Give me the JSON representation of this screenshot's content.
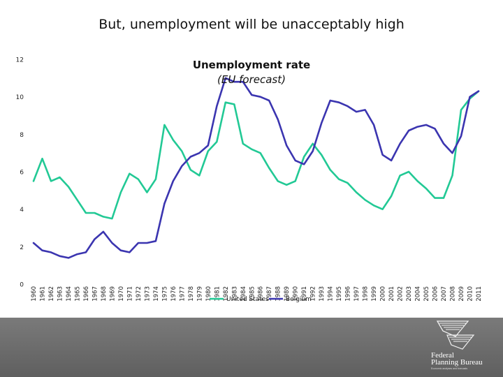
{
  "slide": {
    "title": "But, unemployment will be unacceptably high"
  },
  "logo": {
    "line1": "Federal",
    "line2": "Planning Bureau",
    "tagline": "Economic analyses and forecasts"
  },
  "chart_data": {
    "type": "line",
    "title": "Unemployment rate",
    "subtitle": "(EU forecast)",
    "xlabel": "",
    "ylabel": "",
    "ylim": [
      0,
      12
    ],
    "yticks": [
      0,
      2,
      4,
      6,
      8,
      10,
      12
    ],
    "grid": false,
    "legend": "bottom-center",
    "categories": [
      "1960",
      "1961",
      "1962",
      "1963",
      "1964",
      "1965",
      "1966",
      "1967",
      "1968",
      "1969",
      "1970",
      "1971",
      "1972",
      "1973",
      "1974",
      "1975",
      "1976",
      "1977",
      "1978",
      "1979",
      "1980",
      "1981",
      "1982",
      "1983",
      "1984",
      "1985",
      "1986",
      "1987",
      "1988",
      "1989",
      "1990",
      "1991",
      "1992",
      "1993",
      "1994",
      "1995",
      "1996",
      "1997",
      "1998",
      "1999",
      "2000",
      "2001",
      "2002",
      "2003",
      "2004",
      "2005",
      "2006",
      "2007",
      "2008",
      "2009",
      "2010",
      "2011"
    ],
    "series": [
      {
        "name": "United States",
        "color": "#22c995",
        "values": [
          5.5,
          6.7,
          5.5,
          5.7,
          5.2,
          4.5,
          3.8,
          3.8,
          3.6,
          3.5,
          4.9,
          5.9,
          5.6,
          4.9,
          5.6,
          8.5,
          7.7,
          7.1,
          6.1,
          5.8,
          7.1,
          7.6,
          9.7,
          9.6,
          7.5,
          7.2,
          7.0,
          6.2,
          5.5,
          5.3,
          5.5,
          6.8,
          7.5,
          6.9,
          6.1,
          5.6,
          5.4,
          4.9,
          4.5,
          4.2,
          4.0,
          4.7,
          5.8,
          6.0,
          5.5,
          5.1,
          4.6,
          4.6,
          5.8,
          9.3,
          9.9,
          10.3
        ]
      },
      {
        "name": "Belgium",
        "color": "#3b35b0",
        "values": [
          2.2,
          1.8,
          1.7,
          1.5,
          1.4,
          1.6,
          1.7,
          2.4,
          2.8,
          2.2,
          1.8,
          1.7,
          2.2,
          2.2,
          2.3,
          4.3,
          5.5,
          6.3,
          6.8,
          7.0,
          7.4,
          9.5,
          11.0,
          10.8,
          10.8,
          10.1,
          10.0,
          9.8,
          8.8,
          7.4,
          6.6,
          6.4,
          7.1,
          8.6,
          9.8,
          9.7,
          9.5,
          9.2,
          9.3,
          8.5,
          6.9,
          6.6,
          7.5,
          8.2,
          8.4,
          8.5,
          8.3,
          7.5,
          7.0,
          7.9,
          10.0,
          10.3
        ]
      }
    ]
  }
}
